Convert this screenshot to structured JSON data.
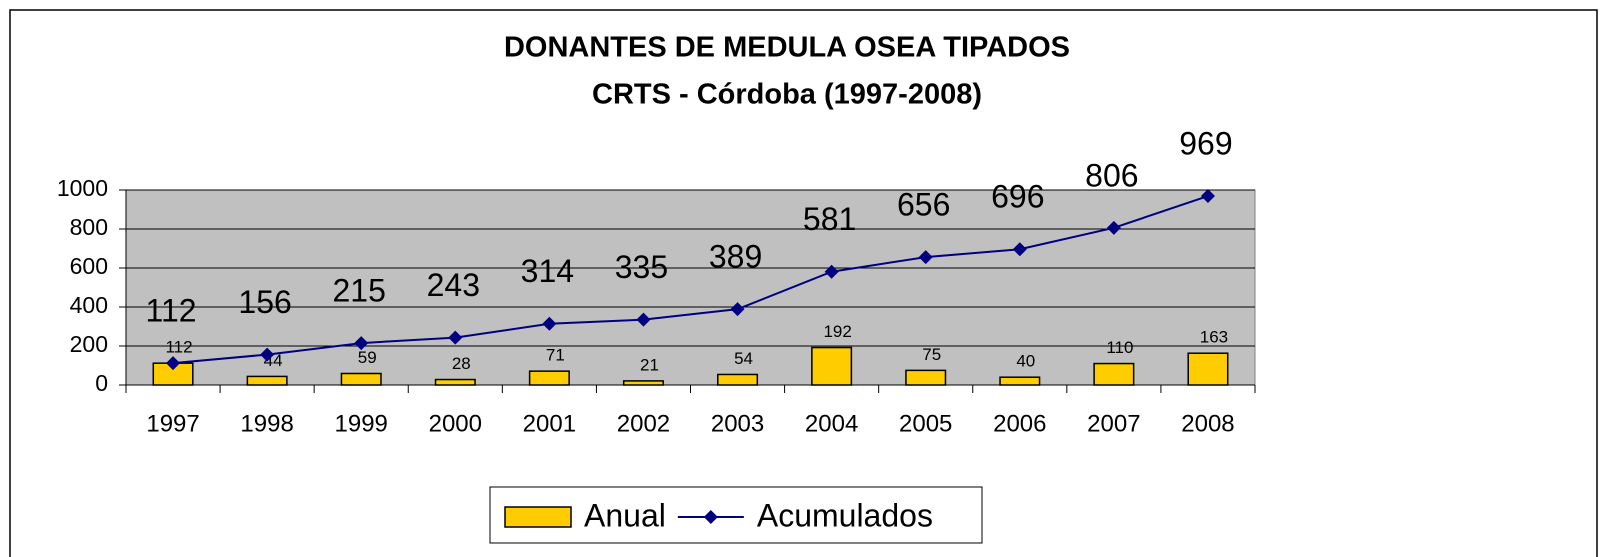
{
  "chart_data": {
    "type": "combo",
    "title": "DONANTES DE MEDULA OSEA TIPADOS",
    "subtitle": "CRTS - Córdoba (1997-2008)",
    "categories": [
      "1997",
      "1998",
      "1999",
      "2000",
      "2001",
      "2002",
      "2003",
      "2004",
      "2005",
      "2006",
      "2007",
      "2008"
    ],
    "series": [
      {
        "name": "Anual",
        "type": "bar",
        "color": "#ffcc00",
        "values": [
          112,
          44,
          59,
          28,
          71,
          21,
          54,
          192,
          75,
          40,
          110,
          163
        ]
      },
      {
        "name": "Acumulados",
        "type": "line",
        "color": "#000080",
        "values": [
          112,
          156,
          215,
          243,
          314,
          335,
          389,
          581,
          656,
          696,
          806,
          969
        ]
      }
    ],
    "ylim": [
      0,
      1000
    ],
    "yticks": [
      0,
      200,
      400,
      600,
      800,
      1000
    ],
    "grid": true,
    "legend": "bottom"
  }
}
